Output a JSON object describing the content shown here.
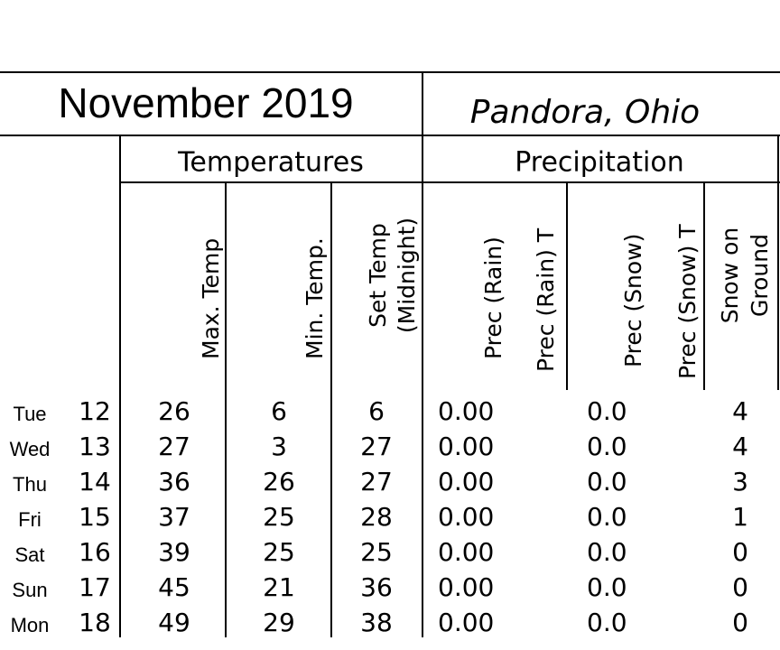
{
  "header": {
    "title": "November 2019",
    "location": "Pandora, Ohio"
  },
  "groups": [
    "Temperatures",
    "Precipitation"
  ],
  "columns": [
    [
      "Max. Temp"
    ],
    [
      "Min. Temp."
    ],
    [
      "Set Temp",
      "(Midnight)"
    ],
    [
      "Prec (Rain)"
    ],
    [
      "Prec (Rain) T"
    ],
    [
      "Prec (Snow)"
    ],
    [
      "Prec (Snow) T"
    ],
    [
      "Snow on",
      "Ground"
    ]
  ],
  "table": {
    "rows": [
      [
        "Tue",
        "12",
        "26",
        "6",
        "6",
        "0.00",
        "0.0",
        "4"
      ],
      [
        "Wed",
        "13",
        "27",
        "3",
        "27",
        "0.00",
        "0.0",
        "4"
      ],
      [
        "Thu",
        "14",
        "36",
        "26",
        "27",
        "0.00",
        "0.0",
        "3"
      ],
      [
        "Fri",
        "15",
        "37",
        "25",
        "28",
        "0.00",
        "0.0",
        "1"
      ],
      [
        "Sat",
        "16",
        "39",
        "25",
        "25",
        "0.00",
        "0.0",
        "0"
      ],
      [
        "Sun",
        "17",
        "45",
        "21",
        "36",
        "0.00",
        "0.0",
        "0"
      ],
      [
        "Mon",
        "18",
        "49",
        "29",
        "38",
        "0.00",
        "0.0",
        "0"
      ]
    ]
  }
}
